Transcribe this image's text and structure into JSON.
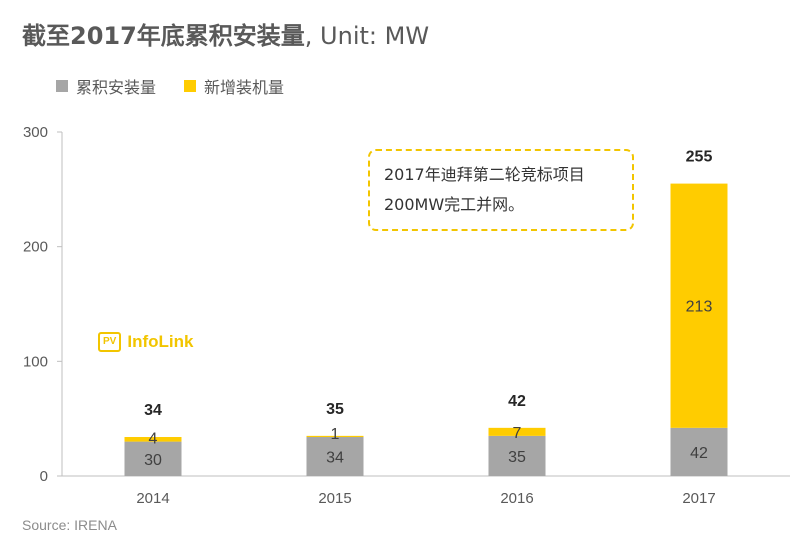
{
  "header": {
    "title_main": "截至2017年底累积安装量",
    "title_unit": ", Unit: MW"
  },
  "legend": [
    {
      "label": "累积安装量",
      "color": "#a6a6a6"
    },
    {
      "label": "新增装机量",
      "color": "#ffcc00"
    }
  ],
  "note": {
    "line1": "2017年迪拜第二轮竞标项目",
    "line2": "200MW完工并网。"
  },
  "logo": {
    "badge": "PV",
    "text": "InfoLink"
  },
  "source": "Source: IRENA",
  "chart_data": {
    "type": "bar",
    "stacked": true,
    "categories": [
      "2014",
      "2015",
      "2016",
      "2017"
    ],
    "series": [
      {
        "name": "累积安装量",
        "values": [
          30,
          34,
          35,
          42
        ],
        "color": "#a6a6a6"
      },
      {
        "name": "新增装机量",
        "values": [
          4,
          1,
          7,
          213
        ],
        "color": "#ffcc00"
      }
    ],
    "totals": [
      34,
      35,
      42,
      255
    ],
    "yticks": [
      0,
      100,
      200,
      300
    ],
    "ylim": [
      0,
      300
    ],
    "grid": false,
    "legend_position": "top-left"
  }
}
